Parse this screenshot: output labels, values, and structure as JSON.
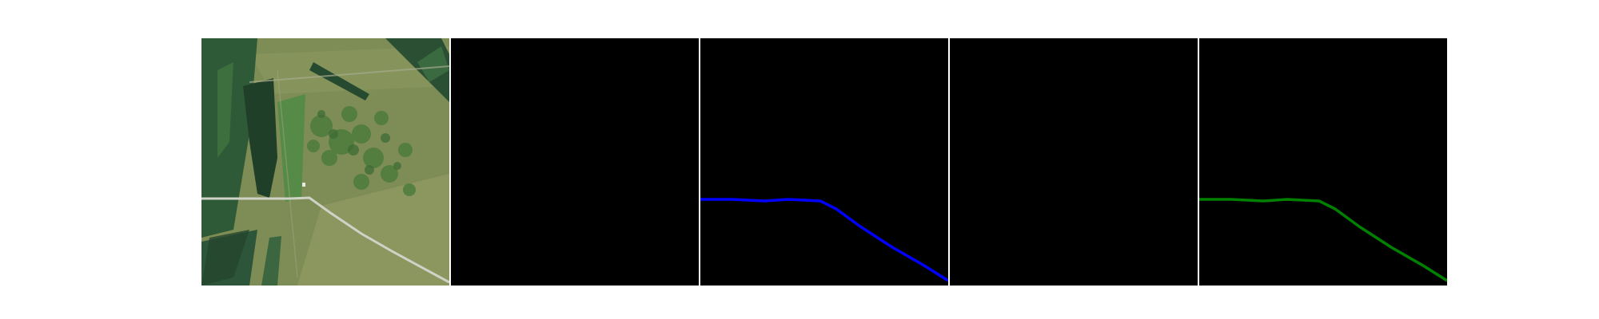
{
  "figure": {
    "panels": [
      {
        "id": "satellite-image",
        "kind": "image"
      },
      {
        "id": "mask-empty-1",
        "kind": "mask",
        "line_color": null
      },
      {
        "id": "mask-road-blue",
        "kind": "mask",
        "line_color": "#0000ff"
      },
      {
        "id": "mask-empty-2",
        "kind": "mask",
        "line_color": null
      },
      {
        "id": "mask-road-green",
        "kind": "mask",
        "line_color": "#008000"
      }
    ],
    "colors": {
      "mask_background": "#000000",
      "separator": "#ffffff",
      "grass": "#7f8f55",
      "forest": "#2f5a35",
      "road": "#cfd2c6"
    }
  }
}
